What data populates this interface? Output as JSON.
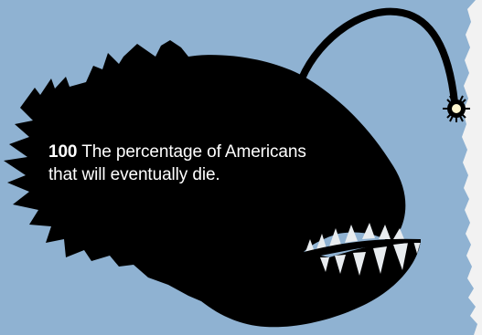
{
  "caption": {
    "number": "100",
    "line1_rest": " The percentage of Americans",
    "line2": "that will  eventually die."
  },
  "illustration": {
    "subject": "anglerfish-silhouette",
    "colors": {
      "background": "#8fb2d2",
      "silhouette": "#000000",
      "lure_glow": "#fff6cf",
      "paper_edge": "#f4f4f4",
      "text": "#ffffff"
    }
  }
}
